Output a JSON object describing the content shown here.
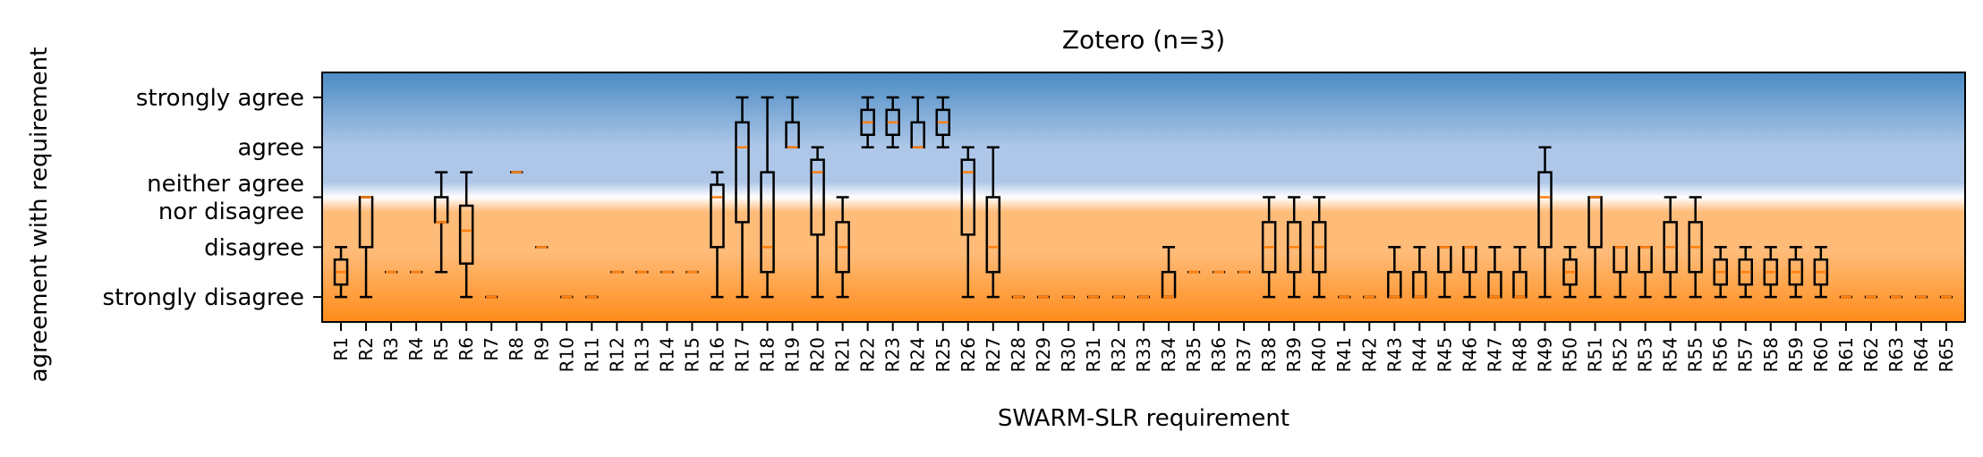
{
  "chart_data": {
    "type": "box",
    "title": "Zotero (n=3)",
    "xlabel": "SWARM-SLR requirement",
    "ylabel": "agreement with requirement",
    "yticks": [
      {
        "value": 1,
        "label": "strongly disagree"
      },
      {
        "value": 2,
        "label": "disagree"
      },
      {
        "value": 3,
        "label": "neither agree\nnor disagree"
      },
      {
        "value": 4,
        "label": "agree"
      },
      {
        "value": 5,
        "label": "strongly agree"
      }
    ],
    "ylim": [
      0.5,
      5.5
    ],
    "background_colors": {
      "agree": "#4a8bc4",
      "light_agree": "#aec7e8",
      "neutral": "#ffffff",
      "light_disagree": "#ffbb78",
      "disagree": "#ff8c1a"
    },
    "median_color": "#ff7f0e",
    "box_color": "#000000",
    "boxes": [
      {
        "label": "R1",
        "min": 1,
        "q1": 1.25,
        "median": 1.5,
        "q3": 1.75,
        "max": 2
      },
      {
        "label": "R2",
        "min": 1,
        "q1": 2,
        "median": 3,
        "q3": 3,
        "max": 3
      },
      {
        "label": "R3",
        "min": 1.5,
        "q1": 1.5,
        "median": 1.5,
        "q3": 1.5,
        "max": 1.5
      },
      {
        "label": "R4",
        "min": 1.5,
        "q1": 1.5,
        "median": 1.5,
        "q3": 1.5,
        "max": 1.5
      },
      {
        "label": "R5",
        "min": 1.5,
        "q1": 2.5,
        "median": 2.5,
        "q3": 3,
        "max": 3.5
      },
      {
        "label": "R6",
        "min": 1,
        "q1": 1.67,
        "median": 2.33,
        "q3": 2.83,
        "max": 3.5
      },
      {
        "label": "R7",
        "min": 1,
        "q1": 1,
        "median": 1,
        "q3": 1,
        "max": 1
      },
      {
        "label": "R8",
        "min": 3.5,
        "q1": 3.5,
        "median": 3.5,
        "q3": 3.5,
        "max": 3.5
      },
      {
        "label": "R9",
        "min": 2,
        "q1": 2,
        "median": 2,
        "q3": 2,
        "max": 2
      },
      {
        "label": "R10",
        "min": 1,
        "q1": 1,
        "median": 1,
        "q3": 1,
        "max": 1
      },
      {
        "label": "R11",
        "min": 1,
        "q1": 1,
        "median": 1,
        "q3": 1,
        "max": 1
      },
      {
        "label": "R12",
        "min": 1.5,
        "q1": 1.5,
        "median": 1.5,
        "q3": 1.5,
        "max": 1.5
      },
      {
        "label": "R13",
        "min": 1.5,
        "q1": 1.5,
        "median": 1.5,
        "q3": 1.5,
        "max": 1.5
      },
      {
        "label": "R14",
        "min": 1.5,
        "q1": 1.5,
        "median": 1.5,
        "q3": 1.5,
        "max": 1.5
      },
      {
        "label": "R15",
        "min": 1.5,
        "q1": 1.5,
        "median": 1.5,
        "q3": 1.5,
        "max": 1.5
      },
      {
        "label": "R16",
        "min": 1,
        "q1": 2,
        "median": 3,
        "q3": 3.25,
        "max": 3.5
      },
      {
        "label": "R17",
        "min": 1,
        "q1": 2.5,
        "median": 4,
        "q3": 4.5,
        "max": 5
      },
      {
        "label": "R18",
        "min": 1,
        "q1": 1.5,
        "median": 2,
        "q3": 3.5,
        "max": 5
      },
      {
        "label": "R19",
        "min": 4,
        "q1": 4,
        "median": 4,
        "q3": 4.5,
        "max": 5
      },
      {
        "label": "R20",
        "min": 1,
        "q1": 2.25,
        "median": 3.5,
        "q3": 3.75,
        "max": 4
      },
      {
        "label": "R21",
        "min": 1,
        "q1": 1.5,
        "median": 2,
        "q3": 2.5,
        "max": 3
      },
      {
        "label": "R22",
        "min": 4,
        "q1": 4.25,
        "median": 4.5,
        "q3": 4.75,
        "max": 5
      },
      {
        "label": "R23",
        "min": 4,
        "q1": 4.25,
        "median": 4.5,
        "q3": 4.75,
        "max": 5
      },
      {
        "label": "R24",
        "min": 4,
        "q1": 4,
        "median": 4,
        "q3": 4.5,
        "max": 5
      },
      {
        "label": "R25",
        "min": 4,
        "q1": 4.25,
        "median": 4.5,
        "q3": 4.75,
        "max": 5
      },
      {
        "label": "R26",
        "min": 1,
        "q1": 2.25,
        "median": 3.5,
        "q3": 3.75,
        "max": 4
      },
      {
        "label": "R27",
        "min": 1,
        "q1": 1.5,
        "median": 2,
        "q3": 3,
        "max": 4
      },
      {
        "label": "R28",
        "min": 1,
        "q1": 1,
        "median": 1,
        "q3": 1,
        "max": 1
      },
      {
        "label": "R29",
        "min": 1,
        "q1": 1,
        "median": 1,
        "q3": 1,
        "max": 1
      },
      {
        "label": "R30",
        "min": 1,
        "q1": 1,
        "median": 1,
        "q3": 1,
        "max": 1
      },
      {
        "label": "R31",
        "min": 1,
        "q1": 1,
        "median": 1,
        "q3": 1,
        "max": 1
      },
      {
        "label": "R32",
        "min": 1,
        "q1": 1,
        "median": 1,
        "q3": 1,
        "max": 1
      },
      {
        "label": "R33",
        "min": 1,
        "q1": 1,
        "median": 1,
        "q3": 1,
        "max": 1
      },
      {
        "label": "R34",
        "min": 1,
        "q1": 1,
        "median": 1,
        "q3": 1.5,
        "max": 2
      },
      {
        "label": "R35",
        "min": 1.5,
        "q1": 1.5,
        "median": 1.5,
        "q3": 1.5,
        "max": 1.5
      },
      {
        "label": "R36",
        "min": 1.5,
        "q1": 1.5,
        "median": 1.5,
        "q3": 1.5,
        "max": 1.5
      },
      {
        "label": "R37",
        "min": 1.5,
        "q1": 1.5,
        "median": 1.5,
        "q3": 1.5,
        "max": 1.5
      },
      {
        "label": "R38",
        "min": 1,
        "q1": 1.5,
        "median": 2,
        "q3": 2.5,
        "max": 3
      },
      {
        "label": "R39",
        "min": 1,
        "q1": 1.5,
        "median": 2,
        "q3": 2.5,
        "max": 3
      },
      {
        "label": "R40",
        "min": 1,
        "q1": 1.5,
        "median": 2,
        "q3": 2.5,
        "max": 3
      },
      {
        "label": "R41",
        "min": 1,
        "q1": 1,
        "median": 1,
        "q3": 1,
        "max": 1
      },
      {
        "label": "R42",
        "min": 1,
        "q1": 1,
        "median": 1,
        "q3": 1,
        "max": 1
      },
      {
        "label": "R43",
        "min": 1,
        "q1": 1,
        "median": 1,
        "q3": 1.5,
        "max": 2
      },
      {
        "label": "R44",
        "min": 1,
        "q1": 1,
        "median": 1,
        "q3": 1.5,
        "max": 2
      },
      {
        "label": "R45",
        "min": 1,
        "q1": 1.5,
        "median": 2,
        "q3": 2,
        "max": 2
      },
      {
        "label": "R46",
        "min": 1,
        "q1": 1.5,
        "median": 2,
        "q3": 2,
        "max": 2
      },
      {
        "label": "R47",
        "min": 1,
        "q1": 1,
        "median": 1,
        "q3": 1.5,
        "max": 2
      },
      {
        "label": "R48",
        "min": 1,
        "q1": 1,
        "median": 1,
        "q3": 1.5,
        "max": 2
      },
      {
        "label": "R49",
        "min": 1,
        "q1": 2,
        "median": 3,
        "q3": 3.5,
        "max": 4
      },
      {
        "label": "R50",
        "min": 1,
        "q1": 1.25,
        "median": 1.5,
        "q3": 1.75,
        "max": 2
      },
      {
        "label": "R51",
        "min": 1,
        "q1": 2,
        "median": 3,
        "q3": 3,
        "max": 3
      },
      {
        "label": "R52",
        "min": 1,
        "q1": 1.5,
        "median": 2,
        "q3": 2,
        "max": 2
      },
      {
        "label": "R53",
        "min": 1,
        "q1": 1.5,
        "median": 2,
        "q3": 2,
        "max": 2
      },
      {
        "label": "R54",
        "min": 1,
        "q1": 1.5,
        "median": 2,
        "q3": 2.5,
        "max": 3
      },
      {
        "label": "R55",
        "min": 1,
        "q1": 1.5,
        "median": 2,
        "q3": 2.5,
        "max": 3
      },
      {
        "label": "R56",
        "min": 1,
        "q1": 1.25,
        "median": 1.5,
        "q3": 1.75,
        "max": 2
      },
      {
        "label": "R57",
        "min": 1,
        "q1": 1.25,
        "median": 1.5,
        "q3": 1.75,
        "max": 2
      },
      {
        "label": "R58",
        "min": 1,
        "q1": 1.25,
        "median": 1.5,
        "q3": 1.75,
        "max": 2
      },
      {
        "label": "R59",
        "min": 1,
        "q1": 1.25,
        "median": 1.5,
        "q3": 1.75,
        "max": 2
      },
      {
        "label": "R60",
        "min": 1,
        "q1": 1.25,
        "median": 1.5,
        "q3": 1.75,
        "max": 2
      },
      {
        "label": "R61",
        "min": 1,
        "q1": 1,
        "median": 1,
        "q3": 1,
        "max": 1
      },
      {
        "label": "R62",
        "min": 1,
        "q1": 1,
        "median": 1,
        "q3": 1,
        "max": 1
      },
      {
        "label": "R63",
        "min": 1,
        "q1": 1,
        "median": 1,
        "q3": 1,
        "max": 1
      },
      {
        "label": "R64",
        "min": 1,
        "q1": 1,
        "median": 1,
        "q3": 1,
        "max": 1
      },
      {
        "label": "R65",
        "min": 1,
        "q1": 1,
        "median": 1,
        "q3": 1,
        "max": 1
      }
    ]
  }
}
